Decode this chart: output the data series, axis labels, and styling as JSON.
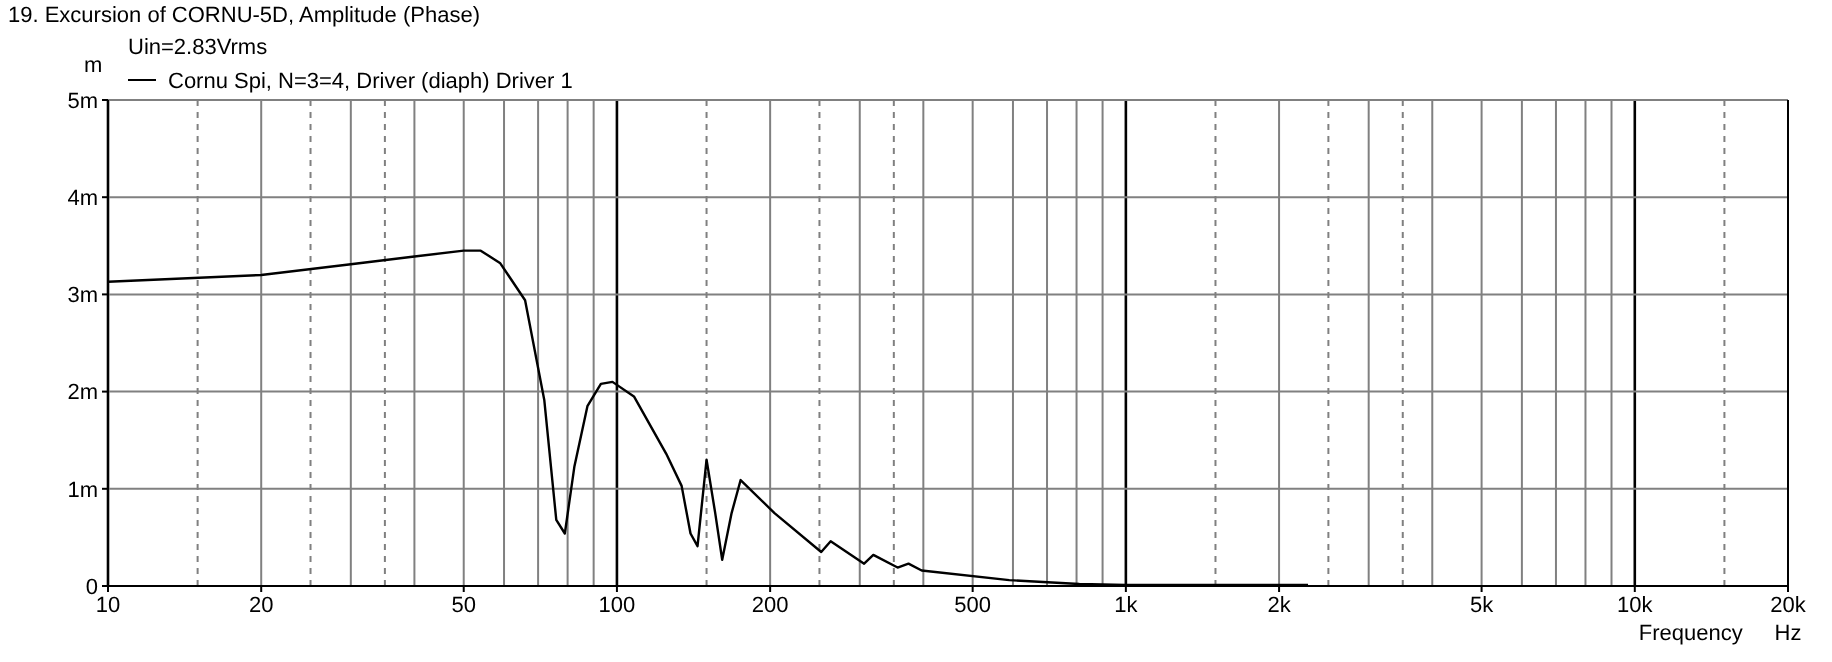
{
  "chart_data": {
    "type": "line",
    "title": "19. Excursion of CORNU-5D, Amplitude (Phase)",
    "subtitle": "Uin=2.83Vrms",
    "ylabel": "m",
    "xlabel": "Frequency",
    "annotations": [
      "Hz"
    ],
    "log": "x",
    "grid": true,
    "legend": "top left",
    "xlim": [
      10,
      20000
    ],
    "xticks": [
      10,
      20,
      50,
      100,
      200,
      500,
      {
        "value": 1000,
        "label": "1k"
      },
      {
        "value": 2000,
        "label": "2k"
      },
      {
        "value": 5000,
        "label": "5k"
      },
      {
        "value": 10000,
        "label": "10k"
      },
      {
        "value": 20000,
        "label": "20k"
      }
    ],
    "ylim": [
      0,
      5
    ],
    "yticks": [
      0,
      {
        "value": 1,
        "label": "1m"
      },
      {
        "value": 2,
        "label": "2m"
      },
      {
        "value": 3,
        "label": "3m"
      },
      {
        "value": 4,
        "label": "4m"
      },
      {
        "value": 5,
        "label": "5m"
      }
    ],
    "series": [
      {
        "name": "Cornu Spi, N=3=4, Driver (diaph) Driver 1",
        "color": "#000000",
        "x": [
          10,
          20,
          30,
          40,
          50,
          54,
          59,
          66,
          72,
          76,
          79,
          82.5,
          87.5,
          93,
          98,
          108,
          125,
          134,
          139.5,
          144,
          150,
          156,
          161,
          168,
          175,
          204,
          252,
          263,
          306,
          319,
          356,
          374,
          397,
          590,
          810,
          1000,
          2280
        ],
        "values": [
          3.13,
          3.2,
          3.31,
          3.39,
          3.45,
          3.45,
          3.32,
          2.94,
          1.91,
          0.68,
          0.54,
          1.23,
          1.85,
          2.08,
          2.1,
          1.95,
          1.36,
          1.03,
          0.54,
          0.41,
          1.3,
          0.75,
          0.27,
          0.75,
          1.09,
          0.75,
          0.35,
          0.46,
          0.23,
          0.32,
          0.19,
          0.23,
          0.16,
          0.06,
          0.02,
          0.01,
          0.01
        ]
      }
    ]
  }
}
